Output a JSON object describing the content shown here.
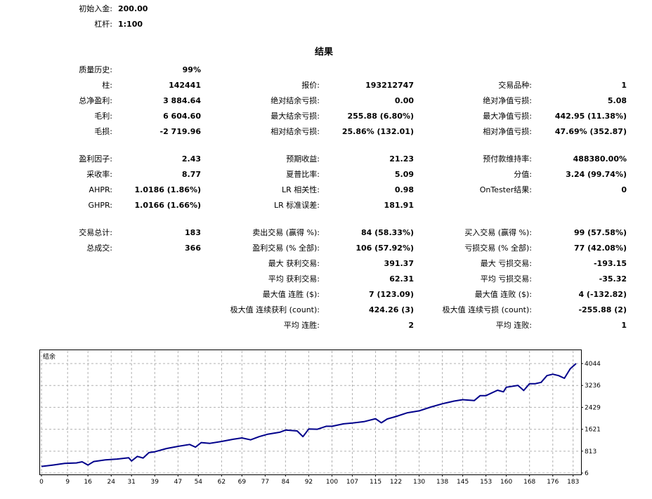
{
  "header": {
    "initial_deposit_label": "初始入金:",
    "initial_deposit_value": "200.00",
    "leverage_label": "杠杆:",
    "leverage_value": "1:100"
  },
  "results_title": "结果",
  "rows": [
    {
      "c1": [
        "质量历史:",
        "99%"
      ],
      "c2": [
        "",
        ""
      ],
      "c3": [
        "",
        ""
      ]
    },
    {
      "c1": [
        "柱:",
        "142441"
      ],
      "c2": [
        "报价:",
        "193212747"
      ],
      "c3": [
        "交易品种:",
        "1"
      ]
    },
    {
      "c1": [
        "总净盈利:",
        "3 884.64"
      ],
      "c2": [
        "绝对结余亏损:",
        "0.00"
      ],
      "c3": [
        "绝对净值亏损:",
        "5.08"
      ]
    },
    {
      "c1": [
        "毛利:",
        "6 604.60"
      ],
      "c2": [
        "最大结余亏损:",
        "255.88 (6.80%)"
      ],
      "c3": [
        "最大净值亏损:",
        "442.95 (11.38%)"
      ]
    },
    {
      "c1": [
        "毛损:",
        "-2 719.96"
      ],
      "c2": [
        "相对结余亏损:",
        "25.86% (132.01)"
      ],
      "c3": [
        "相对净值亏损:",
        "47.69% (352.87)"
      ]
    },
    {
      "c1": [
        "盈利因子:",
        "2.43"
      ],
      "c2": [
        "预期收益:",
        "21.23"
      ],
      "c3": [
        "预付款维持率:",
        "488380.00%"
      ]
    },
    {
      "c1": [
        "采收率:",
        "8.77"
      ],
      "c2": [
        "夏普比率:",
        "5.09"
      ],
      "c3": [
        "分值:",
        "3.24 (99.74%)"
      ]
    },
    {
      "c1": [
        "AHPR:",
        "1.0186 (1.86%)"
      ],
      "c2": [
        "LR 相关性:",
        "0.98"
      ],
      "c3": [
        "OnTester结果:",
        "0"
      ]
    },
    {
      "c1": [
        "GHPR:",
        "1.0166 (1.66%)"
      ],
      "c2": [
        "LR 标准误差:",
        "181.91"
      ],
      "c3": [
        "",
        ""
      ]
    },
    {
      "c1": [
        "交易总计:",
        "183"
      ],
      "c2": [
        "卖出交易 (赢得 %):",
        "84 (58.33%)"
      ],
      "c3": [
        "买入交易 (赢得 %):",
        "99 (57.58%)"
      ]
    },
    {
      "c1": [
        "总成交:",
        "366"
      ],
      "c2": [
        "盈利交易 (% 全部):",
        "106 (57.92%)"
      ],
      "c3": [
        "亏损交易 (% 全部):",
        "77 (42.08%)"
      ]
    },
    {
      "c1": [
        "",
        ""
      ],
      "c2": [
        "最大 获利交易:",
        "391.37"
      ],
      "c3": [
        "最大 亏损交易:",
        "-193.15"
      ]
    },
    {
      "c1": [
        "",
        ""
      ],
      "c2": [
        "平均 获利交易:",
        "62.31"
      ],
      "c3": [
        "平均 亏损交易:",
        "-35.32"
      ]
    },
    {
      "c1": [
        "",
        ""
      ],
      "c2": [
        "最大值 连胜 ($):",
        "7 (123.09)"
      ],
      "c3": [
        "最大值 连败 ($):",
        "4 (-132.82)"
      ]
    },
    {
      "c1": [
        "",
        ""
      ],
      "c2": [
        "极大值 连续获利 (count):",
        "424.26 (3)"
      ],
      "c3": [
        "极大值 连续亏损 (count):",
        "-255.88 (2)"
      ]
    },
    {
      "c1": [
        "",
        ""
      ],
      "c2": [
        "平均 连胜:",
        "2"
      ],
      "c3": [
        "平均 连败:",
        "1"
      ]
    }
  ],
  "chart_data": {
    "type": "line",
    "title": "结余",
    "x_ticks": [
      0,
      9,
      16,
      24,
      31,
      39,
      47,
      54,
      62,
      69,
      77,
      84,
      92,
      100,
      107,
      115,
      122,
      130,
      138,
      145,
      153,
      160,
      168,
      176,
      183
    ],
    "y_ticks": [
      6,
      813,
      1621,
      2429,
      3236,
      4044
    ],
    "xlim": [
      0,
      185
    ],
    "ylim": [
      6,
      4044
    ],
    "grid": true,
    "line_color": "#00008b",
    "series": [
      {
        "x": [
          0,
          4,
          8,
          12,
          14,
          16,
          18,
          22,
          26,
          30,
          31,
          33,
          35,
          37,
          39,
          43,
          47,
          51,
          53,
          55,
          58,
          62,
          66,
          69,
          72,
          75,
          78,
          82,
          84,
          88,
          90,
          92,
          95,
          98,
          100,
          104,
          107,
          111,
          115,
          117,
          119,
          122,
          126,
          130,
          134,
          138,
          142,
          145,
          149,
          151,
          153,
          157,
          159,
          160,
          164,
          166,
          168,
          170,
          172,
          174,
          176,
          178,
          180,
          182,
          184
        ],
        "y": [
          250,
          300,
          360,
          380,
          420,
          300,
          430,
          490,
          520,
          570,
          450,
          620,
          560,
          760,
          790,
          910,
          990,
          1060,
          960,
          1130,
          1100,
          1170,
          1250,
          1300,
          1230,
          1350,
          1440,
          1510,
          1590,
          1560,
          1350,
          1630,
          1620,
          1730,
          1730,
          1820,
          1850,
          1900,
          2010,
          1860,
          2000,
          2090,
          2230,
          2300,
          2440,
          2560,
          2660,
          2710,
          2680,
          2860,
          2860,
          3060,
          3000,
          3170,
          3240,
          3050,
          3300,
          3300,
          3350,
          3600,
          3650,
          3600,
          3500,
          3850,
          4044
        ]
      }
    ]
  }
}
